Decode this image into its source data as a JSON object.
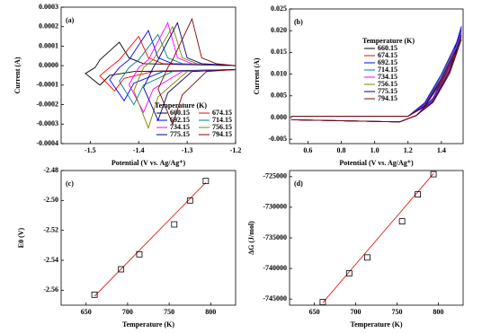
{
  "chart_data": [
    {
      "type": "line",
      "panel_label": "(a)",
      "xlabel": "Potential (V vs. Ag/Ag⁺)",
      "ylabel": "Current (A)",
      "xlim": [
        -1.56,
        -1.2
      ],
      "xticks": [
        -1.5,
        -1.4,
        -1.3,
        -1.2
      ],
      "ylim": [
        -0.0004,
        0.0003
      ],
      "yticks": [
        -0.0004,
        -0.0003,
        -0.0002,
        -0.0001,
        {
          "value": 0,
          "label": "0.0000"
        },
        0.0001,
        0.0002,
        0.0003
      ],
      "legend_title": "Temperature (K)",
      "legend": "lower right",
      "legend_columns": 2,
      "series": [
        {
          "name": "660.15",
          "color": "#000000",
          "x": [
            -1.2,
            -1.41,
            -1.46,
            -1.48,
            -1.51,
            -1.49,
            -1.48,
            -1.44,
            -1.42,
            -1.39,
            -1.2
          ],
          "values": [
            -2e-05,
            -3e-05,
            -5e-05,
            -0.0001,
            -4e-05,
            -1e-05,
            3e-05,
            0.00012,
            4e-05,
            1e-05,
            0
          ]
        },
        {
          "name": "674.15",
          "color": "#ff0000",
          "x": [
            -1.2,
            -1.37,
            -1.43,
            -1.45,
            -1.48,
            -1.46,
            -1.44,
            -1.4,
            -1.38,
            -1.35,
            -1.2
          ],
          "values": [
            -2e-05,
            -3e-05,
            -6.5e-05,
            -0.00013,
            -5.2e-05,
            -1e-05,
            3e-05,
            0.00015,
            4e-05,
            1e-05,
            0
          ]
        },
        {
          "name": "692.15",
          "color": "#0000ff",
          "x": [
            -1.2,
            -1.35,
            -1.41,
            -1.43,
            -1.46,
            -1.44,
            -1.42,
            -1.38,
            -1.36,
            -1.33,
            -1.2
          ],
          "values": [
            -2e-05,
            -3e-05,
            -9e-05,
            -0.00018,
            -7.2e-05,
            -1e-05,
            3e-05,
            0.00018,
            4e-05,
            1e-05,
            0
          ]
        },
        {
          "name": "714.15",
          "color": "#008080",
          "x": [
            -1.2,
            -1.33,
            -1.39,
            -1.41,
            -1.44,
            -1.42,
            -1.4,
            -1.36,
            -1.34,
            -1.31,
            -1.2
          ],
          "values": [
            -2e-05,
            -3e-05,
            -0.0001,
            -0.0002,
            -8e-05,
            -1e-05,
            3e-05,
            0.00016,
            4e-05,
            1e-05,
            0
          ]
        },
        {
          "name": "734.15",
          "color": "#ff00ff",
          "x": [
            -1.2,
            -1.31,
            -1.37,
            -1.39,
            -1.42,
            -1.4,
            -1.38,
            -1.34,
            -1.32,
            -1.29,
            -1.2
          ],
          "values": [
            -2e-05,
            -3e-05,
            -0.00012,
            -0.00024,
            -9.6e-05,
            -1e-05,
            3e-05,
            0.00022,
            4e-05,
            1e-05,
            0
          ]
        },
        {
          "name": "756.15",
          "color": "#808000",
          "x": [
            -1.2,
            -1.3,
            -1.36,
            -1.38,
            -1.41,
            -1.39,
            -1.37,
            -1.33,
            -1.31,
            -1.28,
            -1.2
          ],
          "values": [
            -2e-05,
            -3e-05,
            -0.00016,
            -0.00032,
            -0.000128,
            -1e-05,
            3e-05,
            0.0002,
            4e-05,
            1e-05,
            0
          ]
        },
        {
          "name": "775.15",
          "color": "#000080",
          "x": [
            -1.2,
            -1.29,
            -1.34,
            -1.36,
            -1.39,
            -1.37,
            -1.36,
            -1.32,
            -1.3,
            -1.27,
            -1.2
          ],
          "values": [
            -2e-05,
            -3e-05,
            -0.00014,
            -0.00028,
            -0.000112,
            -1e-05,
            3e-05,
            0.00022,
            4e-05,
            1e-05,
            0
          ]
        },
        {
          "name": "794.15",
          "color": "#800000",
          "x": [
            -1.2,
            -1.26,
            -1.31,
            -1.33,
            -1.36,
            -1.34,
            -1.33,
            -1.29,
            -1.27,
            -1.24,
            -1.2
          ],
          "values": [
            -2e-05,
            -3e-05,
            -0.00015,
            -0.0003,
            -0.00012,
            -1e-05,
            3e-05,
            0.00024,
            4e-05,
            1e-05,
            0
          ]
        }
      ]
    },
    {
      "type": "line",
      "panel_label": "(b)",
      "xlabel": "Potential (V vs. Ag/Ag⁺)",
      "ylabel": "Current (A)",
      "xlim": [
        0.49,
        1.53
      ],
      "xticks": [
        0.6,
        0.8,
        {
          "value": 1,
          "label": "1.0"
        },
        1.2,
        1.4
      ],
      "ylim": [
        -0.006,
        0.025
      ],
      "yticks": [
        -0.005,
        {
          "value": 0,
          "label": "0.000"
        },
        0.005,
        {
          "value": 0.01,
          "label": "0.010"
        },
        0.015,
        {
          "value": 0.02,
          "label": "0.020"
        },
        0.025
      ],
      "legend_title": "Temperature (K)",
      "legend": "upper right",
      "legend_columns": 1,
      "series": [
        {
          "name": "660.15",
          "color": "#000000",
          "x": [
            0.5,
            1.2,
            1.3,
            1.4,
            1.5,
            1.52,
            1.45,
            1.35,
            1.25,
            1.15,
            0.5
          ],
          "values": [
            0.0003,
            0.0003,
            0.003,
            0.009,
            0.017,
            0.0195,
            0.011,
            0.004,
            0.0005,
            -0.001,
            -0.0005
          ]
        },
        {
          "name": "674.15",
          "color": "#ff0000",
          "x": [
            0.5,
            1.2,
            1.3,
            1.4,
            1.5,
            1.52,
            1.45,
            1.35,
            1.25,
            1.15,
            0.5
          ],
          "values": [
            0.0003,
            0.0003,
            0.0032,
            0.0095,
            0.0175,
            0.0205,
            0.0115,
            0.0042,
            0.0005,
            -0.001,
            -0.0005
          ]
        },
        {
          "name": "692.15",
          "color": "#0000ff",
          "x": [
            0.5,
            1.2,
            1.3,
            1.4,
            1.5,
            1.52,
            1.45,
            1.35,
            1.25,
            1.15,
            0.5
          ],
          "values": [
            0.0003,
            0.0003,
            0.0034,
            0.01,
            0.018,
            0.021,
            0.012,
            0.0045,
            0.0005,
            -0.001,
            -0.0005
          ]
        },
        {
          "name": "714.15",
          "color": "#008080",
          "x": [
            0.5,
            1.2,
            1.3,
            1.4,
            1.5,
            1.52,
            1.45,
            1.35,
            1.25,
            1.15,
            0.5
          ],
          "values": [
            0.0003,
            0.0003,
            0.003,
            0.0095,
            0.0172,
            0.02,
            0.0112,
            0.004,
            0.0005,
            -0.001,
            -0.0005
          ]
        },
        {
          "name": "734.15",
          "color": "#ff00ff",
          "x": [
            0.5,
            1.2,
            1.3,
            1.4,
            1.5,
            1.52,
            1.45,
            1.35,
            1.25,
            1.15,
            0.5
          ],
          "values": [
            0.0003,
            0.0003,
            0.0028,
            0.009,
            0.0168,
            0.0195,
            0.011,
            0.0038,
            0.0005,
            -0.001,
            -0.0005
          ]
        },
        {
          "name": "756.15",
          "color": "#808000",
          "x": [
            0.5,
            1.2,
            1.3,
            1.4,
            1.5,
            1.52,
            1.45,
            1.35,
            1.25,
            1.15,
            0.5
          ],
          "values": [
            0.0003,
            0.0003,
            0.0026,
            0.0085,
            0.016,
            0.0185,
            0.0105,
            0.0036,
            0.0005,
            -0.001,
            -0.0005
          ]
        },
        {
          "name": "775.15",
          "color": "#000080",
          "x": [
            0.5,
            1.2,
            1.3,
            1.4,
            1.5,
            1.52,
            1.45,
            1.35,
            1.25,
            1.15,
            0.5
          ],
          "values": [
            0.0003,
            0.0003,
            0.0027,
            0.0088,
            0.0165,
            0.019,
            0.0108,
            0.0037,
            0.0005,
            -0.001,
            -0.0005
          ]
        },
        {
          "name": "794.15",
          "color": "#800000",
          "x": [
            0.5,
            1.2,
            1.3,
            1.4,
            1.5,
            1.52,
            1.45,
            1.35,
            1.25,
            1.15,
            0.5
          ],
          "values": [
            0.0003,
            0.0003,
            0.0025,
            0.0082,
            0.0158,
            0.018,
            0.0102,
            0.0035,
            0.0005,
            -0.001,
            -0.0005
          ]
        }
      ]
    },
    {
      "type": "scatter",
      "panel_label": "(c)",
      "xlabel": "Temperature (K)",
      "ylabel": "E0 (V)",
      "xlim": [
        620,
        830
      ],
      "xticks": [
        650,
        700,
        750,
        800
      ],
      "ylim": [
        -2.57,
        -2.48
      ],
      "yticks": [
        -2.56,
        -2.54,
        -2.52,
        {
          "value": -2.5,
          "label": "-2.50"
        },
        -2.48
      ],
      "marker_color": "#000000",
      "x": [
        660.15,
        692.15,
        714.15,
        756.15,
        775.15,
        794.15
      ],
      "values": [
        -2.563,
        -2.546,
        -2.536,
        -2.516,
        -2.5,
        -2.487
      ],
      "fit_line": {
        "color": "#e02020",
        "x": [
          660.15,
          794.15
        ],
        "values": [
          -2.564,
          -2.488
        ]
      }
    },
    {
      "type": "scatter",
      "panel_label": "(d)",
      "xlabel": "Temperature (K)",
      "ylabel": "ΔG (J/mol)",
      "xlim": [
        620,
        830
      ],
      "xticks": [
        650,
        700,
        750,
        800
      ],
      "ylim": [
        -746000,
        -724000
      ],
      "yticks": [
        -745000,
        -740000,
        -735000,
        -730000,
        -725000
      ],
      "marker_color": "#000000",
      "x": [
        660.15,
        692.15,
        714.15,
        756.15,
        775.15,
        794.15
      ],
      "values": [
        -745500,
        -740800,
        -738200,
        -732300,
        -727900,
        -724600
      ],
      "fit_line": {
        "color": "#e02020",
        "x": [
          660.15,
          794.15
        ],
        "values": [
          -745600,
          -724500
        ]
      }
    }
  ]
}
